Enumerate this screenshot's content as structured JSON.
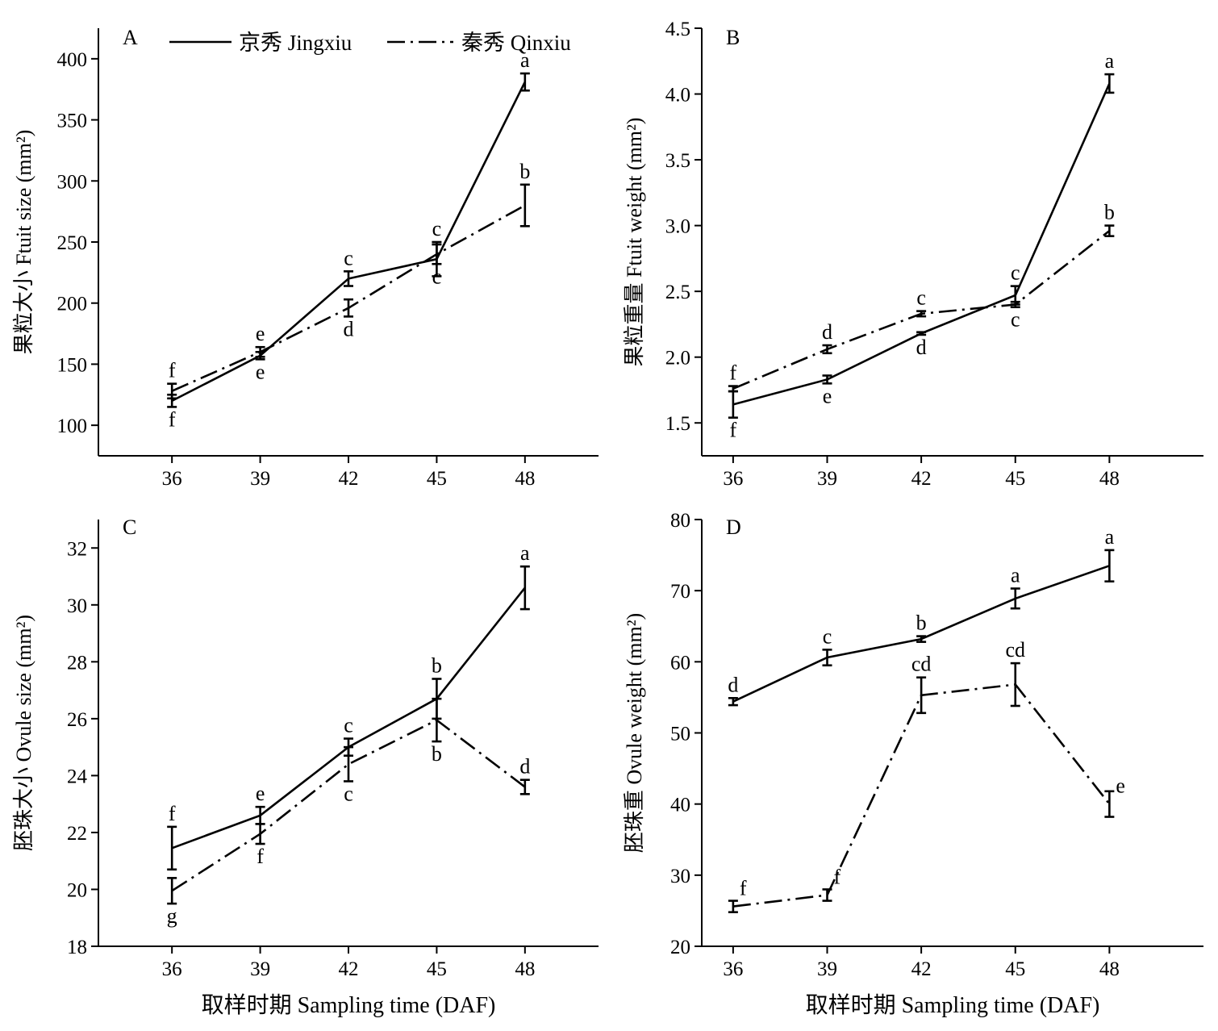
{
  "legend": {
    "jingxiu": "京秀 Jingxiu",
    "qinxiu": "秦秀 Qinxiu"
  },
  "xlabel": "取样时期 Sampling time (DAF)",
  "chart_data": [
    {
      "id": "A",
      "type": "line",
      "panel_label": "A",
      "ylabel": "果粒大小 Ftuit size (mm²)",
      "xlabel": "",
      "x": [
        36,
        39,
        42,
        45,
        48
      ],
      "xlim": [
        33.5,
        50.5
      ],
      "ylim": [
        75,
        425
      ],
      "yticks": [
        100,
        150,
        200,
        250,
        300,
        350,
        400
      ],
      "ytick_labels": [
        "100",
        "150",
        "200",
        "250",
        "300",
        "350",
        "400"
      ],
      "series": [
        {
          "name": "京秀 Jingxiu",
          "style": "solid",
          "values": [
            120,
            157,
            220,
            236,
            381
          ],
          "errors": [
            5,
            3,
            6,
            14,
            7
          ],
          "letters": [
            "f",
            "e",
            "c",
            "c",
            "a"
          ],
          "letter_pos": [
            "below",
            "below",
            "above",
            "above",
            "above"
          ]
        },
        {
          "name": "秦秀 Qinxiu",
          "style": "dashdot",
          "values": [
            128,
            160,
            196,
            240,
            280
          ],
          "errors": [
            6,
            4,
            7,
            8,
            17
          ],
          "letters": [
            "f",
            "e",
            "d",
            "c",
            "b"
          ],
          "letter_pos": [
            "above",
            "above",
            "below",
            "below",
            "above"
          ]
        }
      ]
    },
    {
      "id": "B",
      "type": "line",
      "panel_label": "B",
      "ylabel": "果粒重量 Ftuit weight (mm²)",
      "xlabel": "",
      "x": [
        36,
        39,
        42,
        45,
        48
      ],
      "xlim": [
        35.0,
        51.0
      ],
      "ylim": [
        1.25,
        4.5
      ],
      "yticks": [
        1.5,
        2.0,
        2.5,
        3.0,
        3.5,
        4.0,
        4.5
      ],
      "ytick_labels": [
        "1.5",
        "2.0",
        "2.5",
        "3.0",
        "3.5",
        "4.0",
        "4.5"
      ],
      "series": [
        {
          "name": "京秀 Jingxiu",
          "style": "solid",
          "values": [
            1.64,
            1.83,
            2.18,
            2.47,
            4.08
          ],
          "errors": [
            0.1,
            0.03,
            0.01,
            0.07,
            0.07
          ],
          "letters": [
            "f",
            "e",
            "d",
            "c",
            "a"
          ],
          "letter_pos": [
            "below",
            "below",
            "below",
            "above",
            "above"
          ]
        },
        {
          "name": "秦秀 Qinxiu",
          "style": "dashdot",
          "values": [
            1.76,
            2.06,
            2.33,
            2.4,
            2.96
          ],
          "errors": [
            0.02,
            0.03,
            0.02,
            0.02,
            0.04
          ],
          "letters": [
            "f",
            "d",
            "c",
            "c",
            "b"
          ],
          "letter_pos": [
            "above",
            "above",
            "above",
            "below",
            "above"
          ]
        }
      ]
    },
    {
      "id": "C",
      "type": "line",
      "panel_label": "C",
      "ylabel": "胚珠大小 Ovule size (mm²)",
      "xlabel": "取样时期 Sampling time (DAF)",
      "x": [
        36,
        39,
        42,
        45,
        48
      ],
      "xlim": [
        33.5,
        50.5
      ],
      "ylim": [
        18,
        33
      ],
      "yticks": [
        18,
        20,
        22,
        24,
        26,
        28,
        30,
        32
      ],
      "ytick_labels": [
        "18",
        "20",
        "22",
        "24",
        "26",
        "28",
        "30",
        "32"
      ],
      "series": [
        {
          "name": "京秀 Jingxiu",
          "style": "solid",
          "values": [
            21.45,
            22.6,
            25.0,
            26.7,
            30.6
          ],
          "errors": [
            0.75,
            0.3,
            0.3,
            0.7,
            0.75
          ],
          "letters": [
            "f",
            "e",
            "c",
            "b",
            "a"
          ],
          "letter_pos": [
            "above",
            "above",
            "above",
            "above",
            "above"
          ]
        },
        {
          "name": "秦秀 Qinxiu",
          "style": "dashdot",
          "values": [
            19.95,
            21.95,
            24.4,
            25.95,
            23.6
          ],
          "errors": [
            0.45,
            0.35,
            0.6,
            0.75,
            0.25
          ],
          "letters": [
            "g",
            "f",
            "c",
            "b",
            "d"
          ],
          "letter_pos": [
            "below",
            "below",
            "below",
            "below",
            "above"
          ]
        }
      ]
    },
    {
      "id": "D",
      "type": "line",
      "panel_label": "D",
      "ylabel": "胚珠重 Ovule weight (mm²)",
      "xlabel": "取样时期 Sampling time (DAF)",
      "x": [
        36,
        39,
        42,
        45,
        48
      ],
      "xlim": [
        35.0,
        51.0
      ],
      "ylim": [
        20,
        80
      ],
      "yticks": [
        20,
        30,
        40,
        50,
        60,
        70,
        80
      ],
      "ytick_labels": [
        "20",
        "30",
        "40",
        "50",
        "60",
        "70",
        "80"
      ],
      "series": [
        {
          "name": "京秀 Jingxiu",
          "style": "solid",
          "values": [
            54.4,
            60.6,
            63.2,
            68.9,
            73.5
          ],
          "errors": [
            0.5,
            1.1,
            0.4,
            1.4,
            2.2
          ],
          "letters": [
            "d",
            "c",
            "b",
            "a",
            "a"
          ],
          "letter_pos": [
            "above",
            "above",
            "above",
            "above",
            "above"
          ]
        },
        {
          "name": "秦秀 Qinxiu",
          "style": "dashdot",
          "values": [
            25.6,
            27.2,
            55.3,
            56.8,
            40.0
          ],
          "errors": [
            0.8,
            0.8,
            2.5,
            3.0,
            1.8
          ],
          "letters": [
            "f",
            "f",
            "cd",
            "cd",
            "e"
          ],
          "letter_pos": [
            "right",
            "right",
            "above",
            "above",
            "right"
          ]
        }
      ]
    }
  ]
}
